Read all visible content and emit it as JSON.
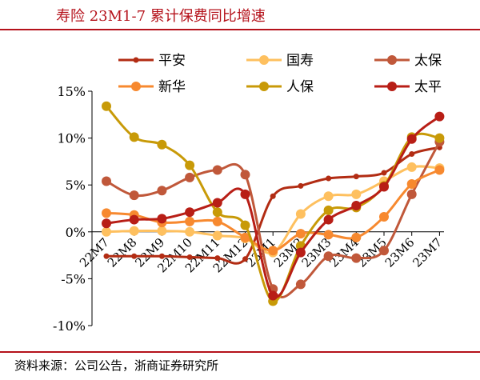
{
  "header": {
    "title": "寿险 23M1-7 累计保费同比增速"
  },
  "footer": {
    "source": "资料来源：公司公告，浙商证券研究所"
  },
  "chart_data": {
    "type": "line",
    "title": "寿险 23M1-7 累计保费同比增速",
    "xlabel": "",
    "ylabel": "",
    "categories": [
      "22M7",
      "22M8",
      "22M9",
      "22M10",
      "22M11",
      "22M12",
      "23M1",
      "23M2",
      "23M3",
      "23M4",
      "23M5",
      "23M6",
      "23M7"
    ],
    "yticks": [
      -10,
      -5,
      0,
      5,
      10,
      15
    ],
    "ytick_labels": [
      "-10%",
      "-5%",
      "0%",
      "5%",
      "10%",
      "15%"
    ],
    "ylim": [
      -10,
      15
    ],
    "grid": false,
    "legend": "top",
    "series": [
      {
        "name": "平安",
        "color": "#b22c13",
        "marker": "small",
        "values": [
          -2.6,
          -2.6,
          -2.6,
          -2.7,
          -2.8,
          -2.9,
          3.8,
          4.9,
          5.7,
          5.9,
          6.3,
          8.3,
          9.0
        ]
      },
      {
        "name": "国寿",
        "color": "#fec05f",
        "marker": "large",
        "values": [
          0.0,
          0.1,
          0.1,
          0.0,
          -0.4,
          -0.7,
          -2.2,
          1.9,
          3.8,
          4.0,
          5.4,
          6.9,
          6.8
        ]
      },
      {
        "name": "太保",
        "color": "#c0583a",
        "marker": "large",
        "values": [
          5.4,
          3.9,
          4.4,
          5.8,
          6.6,
          6.1,
          -6.1,
          -5.6,
          -2.6,
          -2.8,
          -2.0,
          4.0,
          9.6
        ]
      },
      {
        "name": "新华",
        "color": "#f7892f",
        "marker": "large",
        "values": [
          2.0,
          1.8,
          1.0,
          1.1,
          1.1,
          -0.6,
          -2.0,
          -0.2,
          -0.3,
          -0.6,
          1.6,
          5.1,
          6.6
        ]
      },
      {
        "name": "人保",
        "color": "#c89a08",
        "marker": "large",
        "values": [
          13.4,
          10.1,
          9.3,
          7.1,
          2.1,
          0.7,
          -7.4,
          -1.5,
          2.3,
          2.6,
          4.9,
          10.1,
          10.0
        ]
      },
      {
        "name": "太平",
        "color": "#b81e16",
        "marker": "large",
        "values": [
          0.9,
          1.3,
          1.4,
          2.1,
          3.1,
          4.0,
          -6.8,
          -2.2,
          1.3,
          2.8,
          4.8,
          9.9,
          12.3
        ]
      }
    ]
  }
}
